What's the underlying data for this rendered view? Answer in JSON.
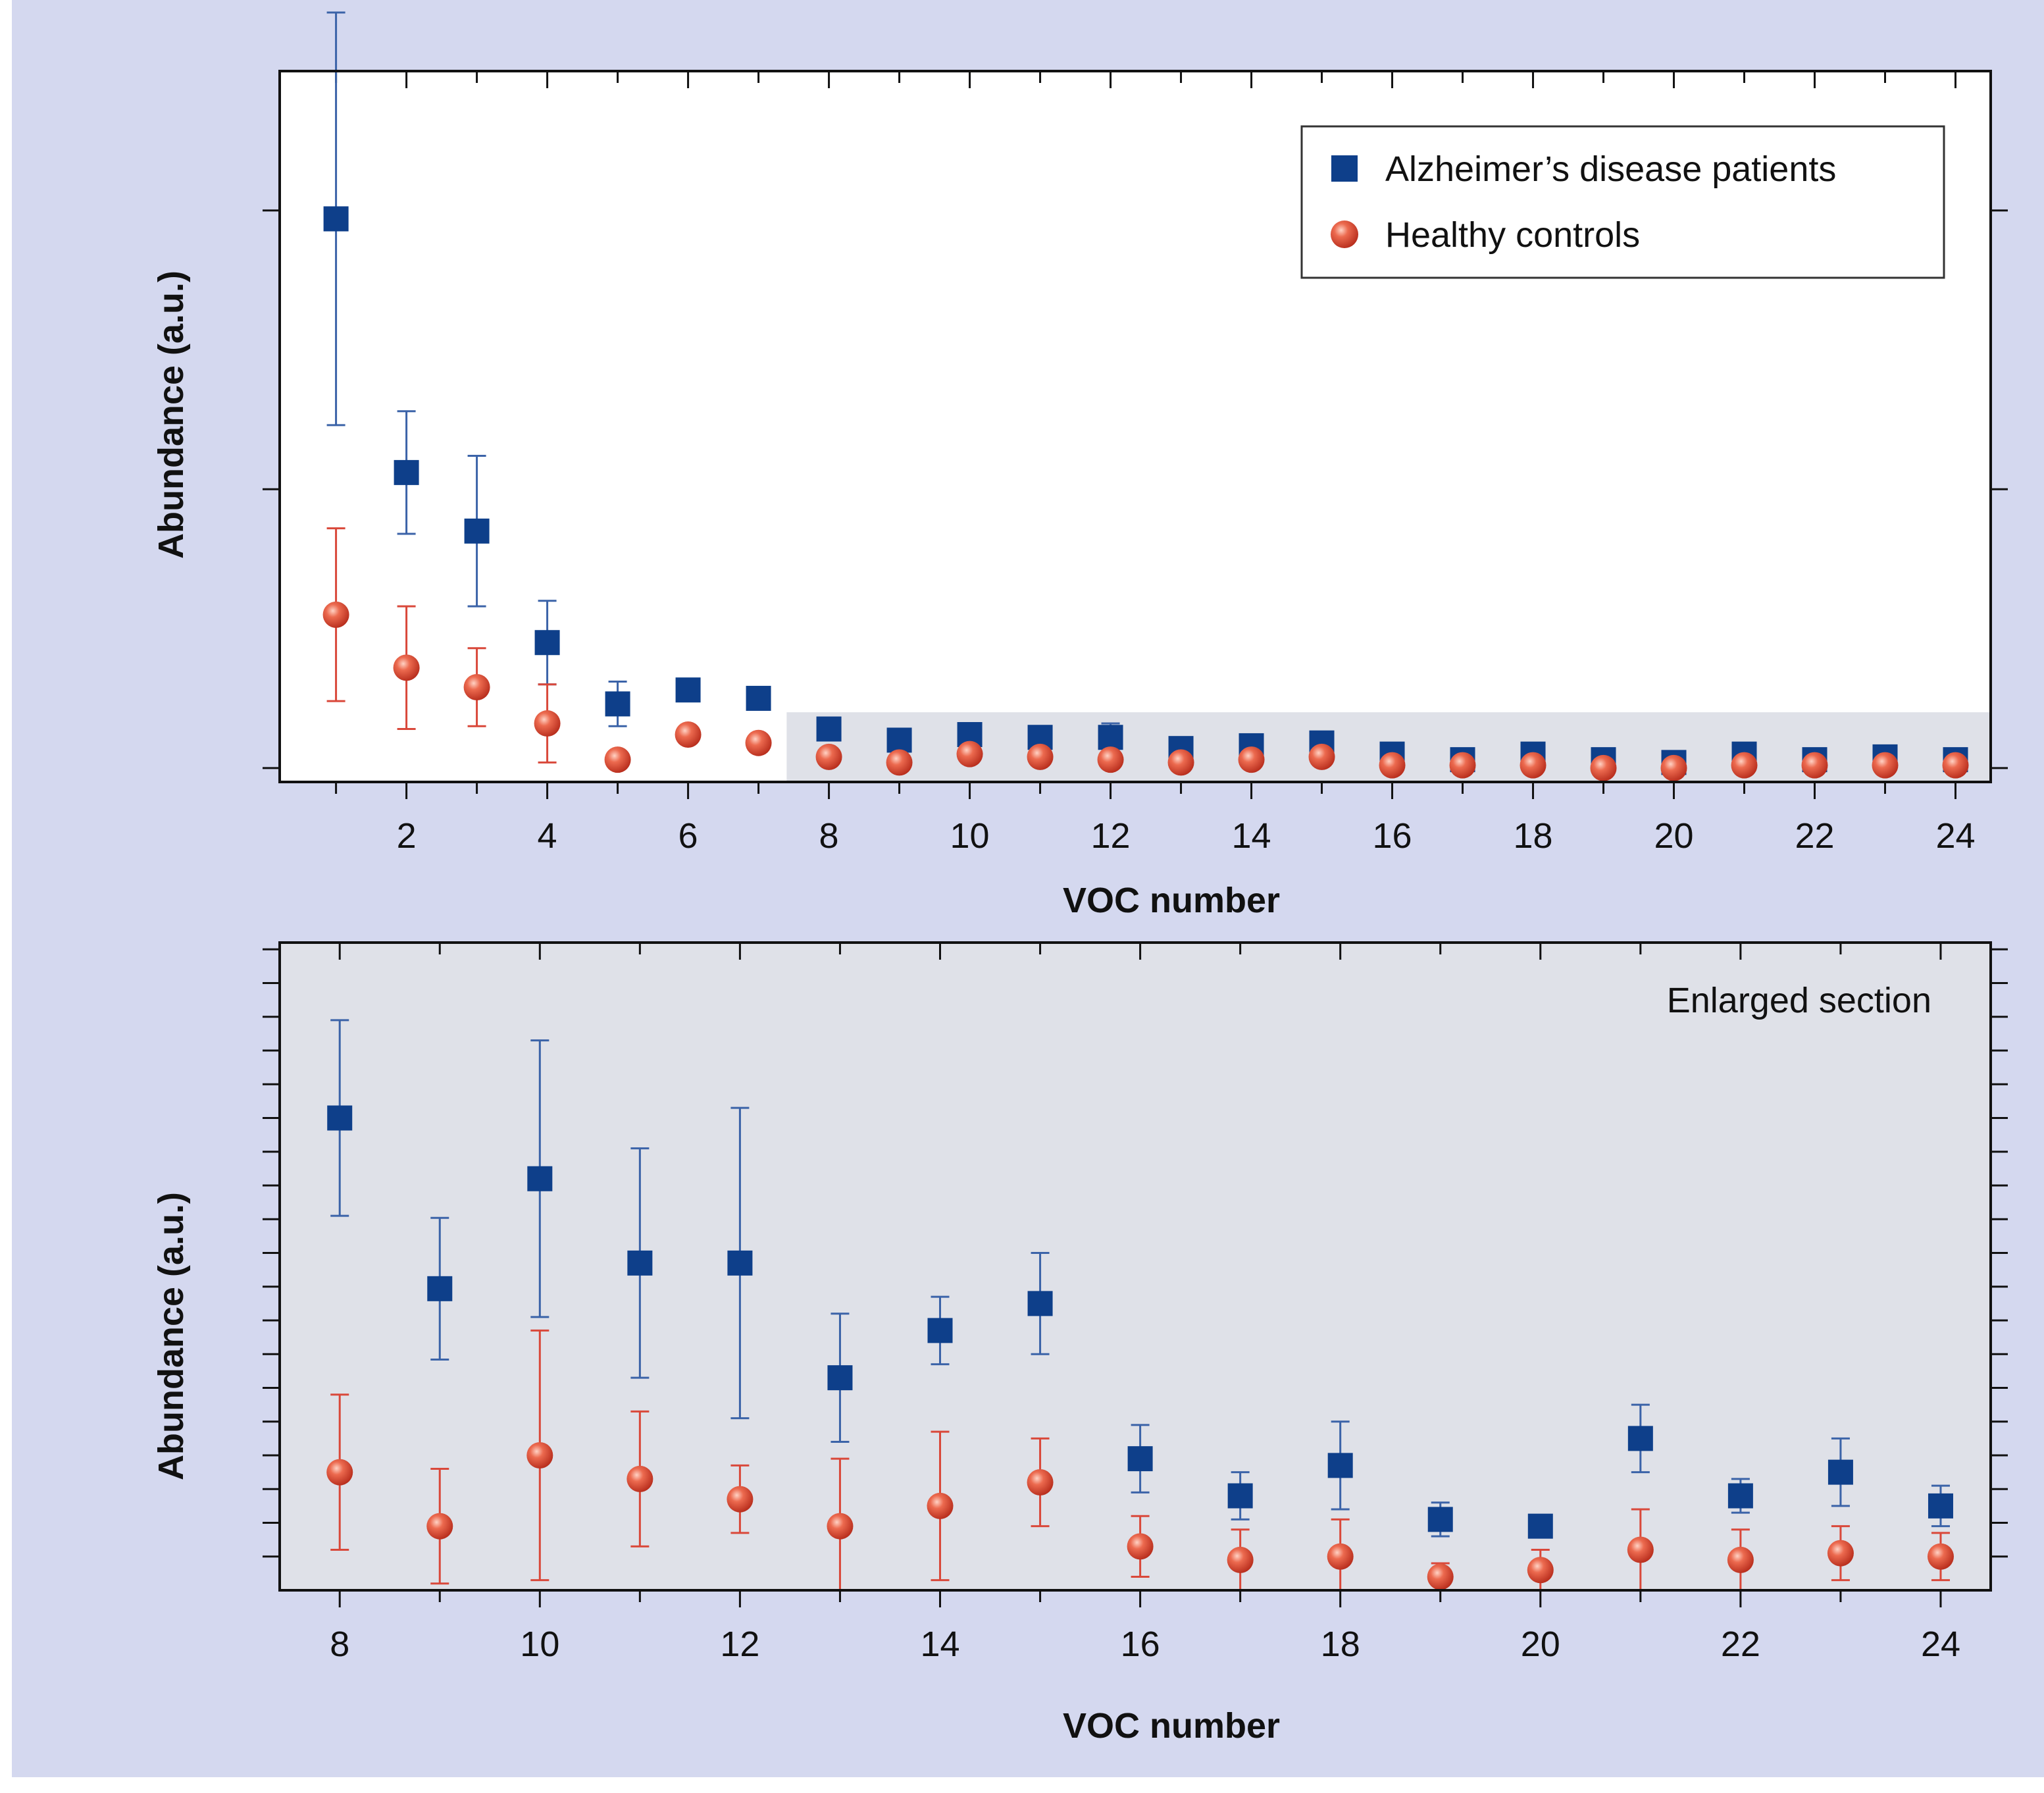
{
  "colors": {
    "page_background": "#d4d8ef",
    "plot_background": "#ffffff",
    "enlarged_background": "#dfe1e8",
    "ad_series": "#0e3f8a",
    "ad_error": "#3b63a8",
    "hc_series": "#d8432e",
    "hc_error": "#d9483a",
    "axis": "#111111"
  },
  "chart_data": [
    {
      "type": "scatter",
      "panel": "full-range",
      "title": "",
      "xlabel": "VOC number",
      "ylabel": "Abundance (a.u.)",
      "xlim": [
        0.2,
        24.5
      ],
      "ylim": [
        -0.05,
        2.5
      ],
      "xticks": [
        2,
        4,
        6,
        8,
        10,
        12,
        14,
        16,
        18,
        20,
        22,
        24
      ],
      "yticks": [
        0,
        1,
        2
      ],
      "show_y_tick_labels": false,
      "highlight_region": {
        "x": [
          7.4,
          24.5
        ],
        "y": [
          -0.05,
          0.2
        ]
      },
      "legend": {
        "position": "top-right",
        "entries": [
          "Alzheimer’s disease patients",
          "Healthy controls"
        ]
      },
      "series": [
        {
          "name": "Alzheimer’s disease patients",
          "marker": "square",
          "x": [
            1,
            2,
            3,
            4,
            5,
            6,
            7,
            8,
            9,
            10,
            11,
            12,
            13,
            14,
            15,
            16,
            17,
            18,
            19,
            20,
            21,
            22,
            23,
            24
          ],
          "values": [
            1.97,
            1.06,
            0.85,
            0.45,
            0.23,
            0.28,
            0.25,
            0.14,
            0.1,
            0.12,
            0.11,
            0.11,
            0.07,
            0.08,
            0.09,
            0.05,
            0.03,
            0.05,
            0.03,
            0.02,
            0.05,
            0.03,
            0.04,
            0.03
          ],
          "error": [
            0.74,
            0.22,
            0.27,
            0.15,
            0.08,
            0.04,
            0.04,
            0.03,
            0.03,
            0.04,
            0.04,
            0.05,
            0.02,
            0.01,
            0.02,
            0.01,
            0.01,
            0.01,
            0.01,
            0.01,
            0.01,
            0.01,
            0.01,
            0.01
          ]
        },
        {
          "name": "Healthy controls",
          "marker": "circle",
          "x": [
            1,
            2,
            3,
            4,
            5,
            6,
            7,
            8,
            9,
            10,
            11,
            12,
            13,
            14,
            15,
            16,
            17,
            18,
            19,
            20,
            21,
            22,
            23,
            24
          ],
          "values": [
            0.55,
            0.36,
            0.29,
            0.16,
            0.03,
            0.12,
            0.09,
            0.04,
            0.02,
            0.05,
            0.04,
            0.03,
            0.02,
            0.03,
            0.04,
            0.01,
            0.01,
            0.01,
            0.0,
            0.0,
            0.01,
            0.01,
            0.01,
            0.01
          ],
          "error": [
            0.31,
            0.22,
            0.14,
            0.14,
            0.0,
            0.0,
            0.0,
            0.0,
            0.0,
            0.01,
            0.01,
            0.01,
            0.01,
            0.01,
            0.01,
            0.0,
            0.0,
            0.0,
            0.0,
            0.0,
            0.0,
            0.0,
            0.0,
            0.0
          ]
        }
      ]
    },
    {
      "type": "scatter",
      "panel": "enlarged",
      "title": "",
      "annotation": "Enlarged section",
      "xlabel": "VOC number",
      "ylabel": "Abundance (a.u.)",
      "xlim": [
        7.4,
        24.5
      ],
      "ylim": [
        0,
        9.6
      ],
      "xticks": [
        8,
        10,
        12,
        14,
        16,
        18,
        20,
        22,
        24
      ],
      "yticks": [
        0.5,
        1,
        1.5,
        2,
        2.5,
        3,
        3.5,
        4,
        4.5,
        5,
        5.5,
        6,
        6.5,
        7,
        7.5,
        8,
        8.5,
        9,
        9.5
      ],
      "show_y_tick_labels": false,
      "series": [
        {
          "name": "Alzheimer’s disease patients",
          "marker": "square",
          "x": [
            8,
            9,
            10,
            11,
            12,
            13,
            14,
            15,
            16,
            17,
            18,
            19,
            20,
            21,
            22,
            23,
            24
          ],
          "values": [
            7.0,
            4.47,
            6.1,
            4.85,
            4.85,
            3.15,
            3.85,
            4.25,
            1.95,
            1.4,
            1.85,
            1.05,
            0.95,
            2.25,
            1.4,
            1.75,
            1.25
          ],
          "error": [
            1.45,
            1.05,
            2.05,
            1.7,
            2.3,
            0.95,
            0.5,
            0.75,
            0.5,
            0.35,
            0.65,
            0.25,
            0.15,
            0.5,
            0.25,
            0.5,
            0.3
          ]
        },
        {
          "name": "Healthy controls",
          "marker": "circle",
          "x": [
            8,
            9,
            10,
            11,
            12,
            13,
            14,
            15,
            16,
            17,
            18,
            19,
            20,
            21,
            22,
            23,
            24
          ],
          "values": [
            1.75,
            0.95,
            2.0,
            1.65,
            1.35,
            0.95,
            1.25,
            1.6,
            0.65,
            0.45,
            0.5,
            0.2,
            0.3,
            0.6,
            0.45,
            0.55,
            0.5
          ],
          "error": [
            1.15,
            0.85,
            1.85,
            1.0,
            0.5,
            1.0,
            1.1,
            0.65,
            0.45,
            0.45,
            0.55,
            0.2,
            0.3,
            0.6,
            0.45,
            0.4,
            0.35
          ]
        }
      ]
    }
  ]
}
